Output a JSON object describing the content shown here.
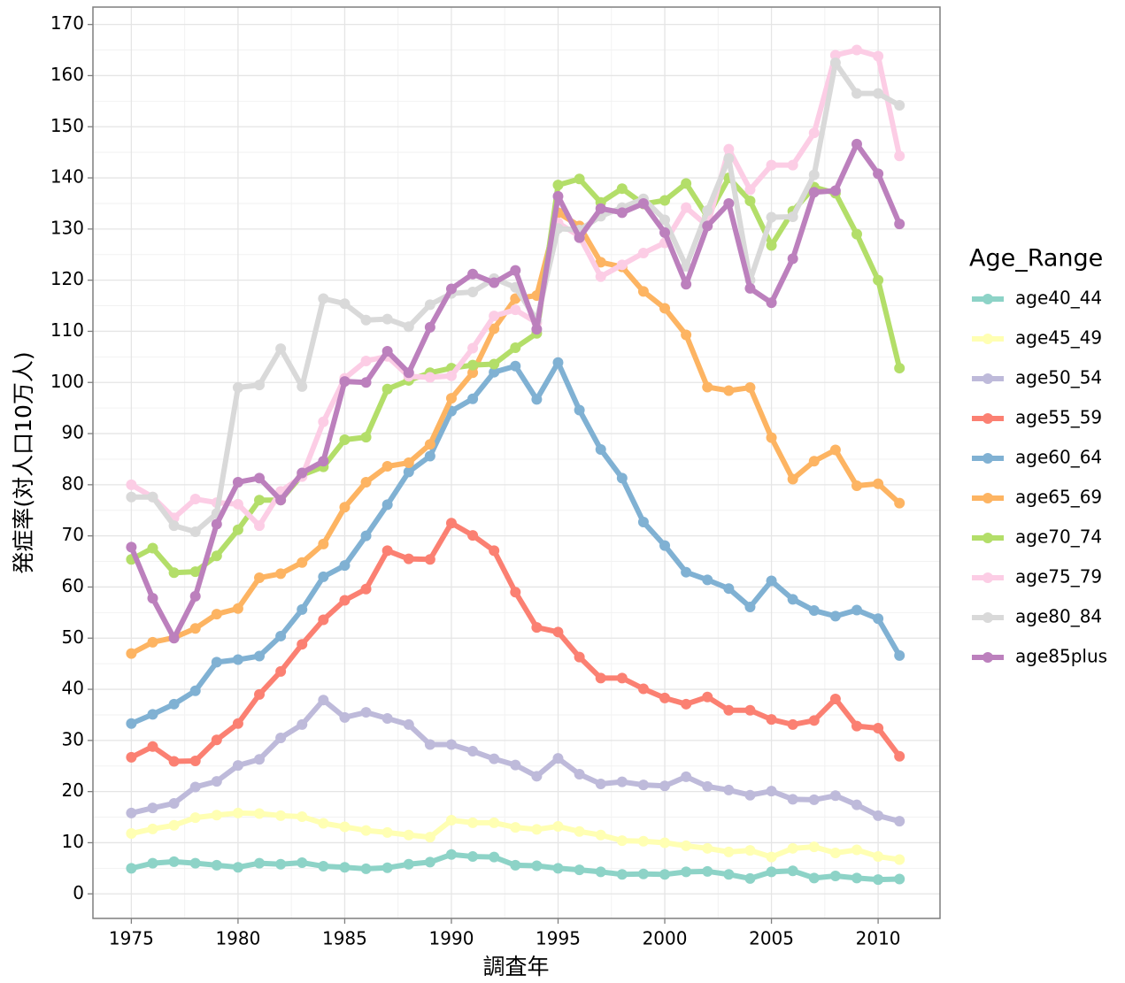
{
  "chart_data": {
    "type": "line",
    "x_label": "調査年",
    "y_label": "発症率(対人口10万人)",
    "legend_title": "Age_Range",
    "legend_position": "right",
    "grid": true,
    "x": [
      1975,
      1976,
      1977,
      1978,
      1979,
      1980,
      1981,
      1982,
      1983,
      1984,
      1985,
      1986,
      1987,
      1988,
      1989,
      1990,
      1991,
      1992,
      1993,
      1994,
      1995,
      1996,
      1997,
      1998,
      1999,
      2000,
      2001,
      2002,
      2003,
      2004,
      2005,
      2006,
      2007,
      2008,
      2009,
      2010,
      2011
    ],
    "xlim": [
      1973.2,
      2012.9
    ],
    "xticks": [
      1975,
      1980,
      1985,
      1990,
      1995,
      2000,
      2005,
      2010
    ],
    "ylim": [
      -4.8,
      173.4
    ],
    "yticks": [
      0,
      10,
      20,
      30,
      40,
      50,
      60,
      70,
      80,
      90,
      100,
      110,
      120,
      130,
      140,
      150,
      160,
      170
    ],
    "series": [
      {
        "name": "age40_44",
        "color": "#8dd3c7",
        "values": [
          5,
          6,
          6.3,
          6,
          5.6,
          5.2,
          6,
          5.8,
          6.1,
          5.4,
          5.2,
          4.9,
          5.1,
          5.8,
          6.2,
          7.7,
          7.3,
          7.2,
          5.6,
          5.5,
          5,
          4.7,
          4.3,
          3.8,
          3.9,
          3.8,
          4.3,
          4.4,
          3.8,
          3,
          4.3,
          4.5,
          3.1,
          3.5,
          3.1,
          2.8,
          2.9
        ]
      },
      {
        "name": "age45_49",
        "color": "#ffffb3",
        "values": [
          11.8,
          12.7,
          13.4,
          14.9,
          15.4,
          15.8,
          15.7,
          15.3,
          15.1,
          13.8,
          13.1,
          12.4,
          12,
          11.5,
          11.1,
          14.4,
          13.9,
          13.9,
          13,
          12.6,
          13.2,
          12.2,
          11.5,
          10.4,
          10.3,
          10,
          9.4,
          8.9,
          8.2,
          8.5,
          7.2,
          8.9,
          9.2,
          8,
          8.6,
          7.3,
          6.7
        ]
      },
      {
        "name": "age50_54",
        "color": "#bebada",
        "values": [
          15.8,
          16.8,
          17.7,
          20.9,
          22,
          25.1,
          26.3,
          30.5,
          33.1,
          37.9,
          34.5,
          35.5,
          34.3,
          33.1,
          29.2,
          29.2,
          27.9,
          26.4,
          25.2,
          23,
          26.5,
          23.4,
          21.5,
          21.9,
          21.3,
          21.1,
          22.9,
          21,
          20.3,
          19.3,
          20.1,
          18.5,
          18.4,
          19.2,
          17.4,
          15.3,
          14.2
        ]
      },
      {
        "name": "age55_59",
        "color": "#fb8072",
        "values": [
          26.7,
          28.8,
          25.9,
          26,
          30.1,
          33.3,
          39,
          43.5,
          48.8,
          53.6,
          57.4,
          59.6,
          67.1,
          65.5,
          65.4,
          72.5,
          70.1,
          67.1,
          59,
          52.1,
          51.2,
          46.3,
          42.2,
          42.2,
          40.1,
          38.3,
          37.1,
          38.5,
          35.9,
          35.9,
          34.1,
          33.1,
          33.9,
          38.1,
          32.8,
          32.4,
          26.9
        ]
      },
      {
        "name": "age60_64",
        "color": "#80b1d3",
        "values": [
          33.3,
          35.1,
          37.1,
          39.7,
          45.3,
          45.8,
          46.5,
          50.4,
          55.6,
          62,
          64.2,
          70,
          76.1,
          82.5,
          85.6,
          94.4,
          96.8,
          102,
          103.2,
          96.7,
          103.9,
          94.6,
          86.9,
          81.3,
          72.7,
          68.1,
          62.9,
          61.4,
          59.7,
          56.1,
          61.2,
          57.6,
          55.4,
          54.3,
          55.5,
          53.8,
          46.6
        ]
      },
      {
        "name": "age65_69",
        "color": "#fdb462",
        "values": [
          47,
          49.2,
          50.1,
          51.9,
          54.7,
          55.8,
          61.8,
          62.6,
          64.8,
          68.4,
          75.6,
          80.5,
          83.6,
          84.3,
          87.9,
          96.9,
          101.9,
          110.5,
          116.4,
          117,
          133.2,
          130.6,
          123.5,
          122.6,
          117.8,
          114.5,
          109.3,
          99.1,
          98.4,
          99,
          89.2,
          81.1,
          84.6,
          86.8,
          79.8,
          80.2,
          76.4
        ]
      },
      {
        "name": "age70_74",
        "color": "#b3de69",
        "values": [
          65.4,
          67.6,
          62.8,
          63,
          66.1,
          71.2,
          77,
          77,
          81.9,
          83.5,
          88.8,
          89.3,
          98.7,
          100.4,
          101.9,
          102.8,
          103.4,
          103.6,
          106.8,
          109.6,
          138.6,
          139.8,
          135.2,
          137.9,
          134.9,
          135.6,
          138.9,
          132.4,
          140,
          135.5,
          126.8,
          133.5,
          138.2,
          137,
          129,
          120,
          102.8
        ]
      },
      {
        "name": "age75_79",
        "color": "#fccde5",
        "values": [
          80,
          77.6,
          73.5,
          77.2,
          76.5,
          76.2,
          72,
          78.7,
          81.6,
          92.3,
          100.8,
          104.2,
          105.1,
          101.2,
          101,
          101.3,
          106.7,
          113,
          114.2,
          111.7,
          131.2,
          128.6,
          120.7,
          123,
          125.3,
          127.3,
          134.2,
          130.6,
          145.6,
          137.7,
          142.5,
          142.5,
          148.8,
          164,
          165,
          163.8,
          144.3
        ]
      },
      {
        "name": "age80_84",
        "color": "#d9d9d9",
        "values": [
          77.6,
          77.6,
          72,
          70.8,
          74.4,
          99,
          99.5,
          106.6,
          99.2,
          116.4,
          115.4,
          112.2,
          112.4,
          110.9,
          115.2,
          117.4,
          117.7,
          120.3,
          118.6,
          112.2,
          130.1,
          129.8,
          132.5,
          134.2,
          135.9,
          131.8,
          122.7,
          133.6,
          143.8,
          120,
          132.3,
          132.4,
          140.6,
          162.5,
          156.5,
          156.5,
          154.2
        ]
      },
      {
        "name": "age85plus",
        "color": "#bc80bd",
        "values": [
          67.8,
          57.8,
          50,
          58.2,
          72.3,
          80.5,
          81.3,
          77,
          82.3,
          84.6,
          100.2,
          100,
          106.1,
          101.9,
          110.8,
          118.3,
          121.2,
          119.5,
          121.9,
          110.4,
          136.4,
          128.3,
          134,
          133.2,
          135,
          129.3,
          119.2,
          130.6,
          135,
          118.4,
          115.6,
          124.2,
          137.2,
          137.5,
          146.6,
          140.8,
          131
        ]
      }
    ]
  }
}
